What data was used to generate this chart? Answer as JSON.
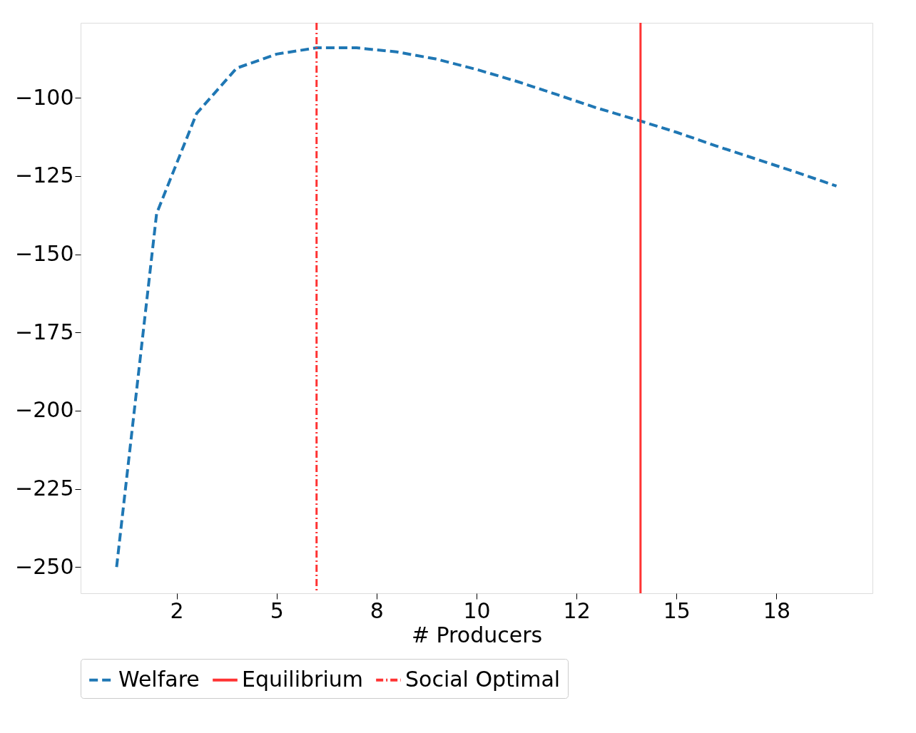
{
  "chart_data": {
    "type": "line",
    "xlabel": "# Producers",
    "x": [
      1,
      2,
      3,
      4,
      5,
      6,
      7,
      8,
      9,
      10,
      11,
      12,
      13,
      14,
      15,
      16,
      17,
      18,
      19
    ],
    "series": [
      {
        "name": "Welfare",
        "color": "#1f77b4",
        "line_style": "dashed",
        "values": [
          -250,
          -137,
          -105,
          -90.5,
          -86,
          -84,
          -84,
          -85.3,
          -87.6,
          -90.9,
          -94.7,
          -98.9,
          -103.2,
          -107,
          -111,
          -115.4,
          -119.6,
          -123.8,
          -128.2
        ]
      }
    ],
    "ref_lines": [
      {
        "axis": "x",
        "value": 14.1,
        "label": "Equilibrium",
        "color": "#ff3333",
        "line_style": "solid"
      },
      {
        "axis": "x",
        "value": 6,
        "label": "Social Optimal",
        "color": "#ff3333",
        "line_style": "dashdot"
      }
    ],
    "xlim": [
      0.1,
      19.9
    ],
    "ylim": [
      -258.4,
      -76
    ],
    "xticks": [
      {
        "value": 2.5,
        "label": "2"
      },
      {
        "value": 5,
        "label": "5"
      },
      {
        "value": 7.5,
        "label": "8"
      },
      {
        "value": 10,
        "label": "10"
      },
      {
        "value": 12.5,
        "label": "12"
      },
      {
        "value": 15,
        "label": "15"
      },
      {
        "value": 17.5,
        "label": "18"
      }
    ],
    "yticks": [
      -250,
      -225,
      -200,
      -175,
      -150,
      -125,
      -100
    ],
    "grid": false,
    "legend": "bottom"
  }
}
